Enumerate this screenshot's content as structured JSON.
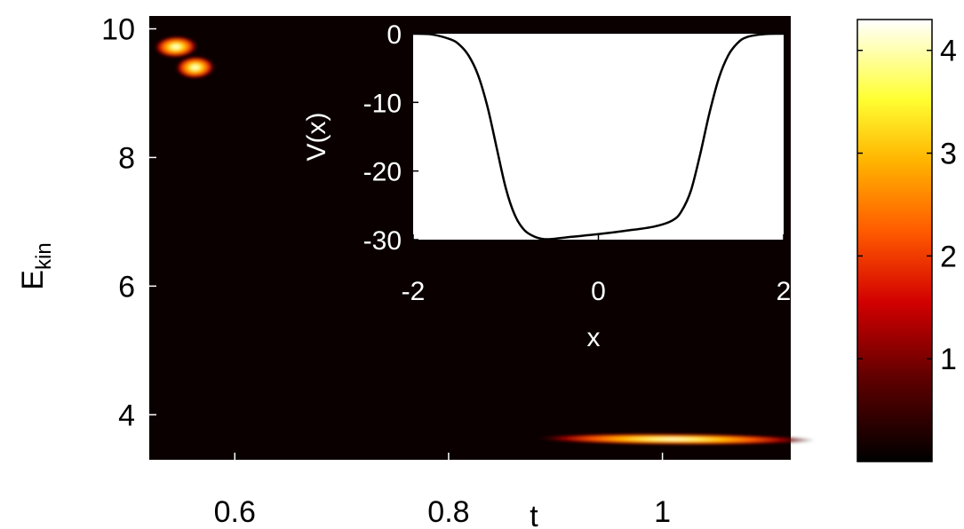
{
  "chart_data": [
    {
      "type": "heatmap",
      "title": "",
      "xlabel": "t",
      "ylabel_main": "E",
      "ylabel_sub": "kin",
      "xlim": [
        0.52,
        1.12
      ],
      "ylim": [
        3.3,
        10.2
      ],
      "xticks": [
        "0.6",
        "0.8",
        "1"
      ],
      "xtick_values": [
        0.6,
        0.8,
        1.0
      ],
      "yticks": [
        "4",
        "6",
        "8",
        "10"
      ],
      "ytick_values": [
        4,
        6,
        8,
        10
      ],
      "colormap": "hot",
      "background_color": "#0a0000",
      "blobs": [
        {
          "t": 0.545,
          "E": 9.72,
          "spread_t": 0.011,
          "spread_E": 0.16,
          "tilt": 0.55,
          "peak": 4.2
        },
        {
          "t": 0.563,
          "E": 9.4,
          "spread_t": 0.01,
          "spread_E": 0.18,
          "tilt": 0.55,
          "peak": 4.2
        },
        {
          "t": 1.01,
          "E": 3.62,
          "spread_t": 0.07,
          "spread_E": 0.055,
          "tilt": -0.12,
          "peak": 4.2
        }
      ],
      "colorbar": {
        "range": [
          0,
          4.3
        ],
        "ticks": [
          "1",
          "2",
          "3",
          "4"
        ],
        "tick_values": [
          1,
          2,
          3,
          4
        ]
      }
    },
    {
      "type": "line",
      "title": "",
      "xlabel": "x",
      "ylabel": "V(x)",
      "xlim": [
        -2,
        2
      ],
      "ylim": [
        -30,
        0
      ],
      "xticks": [
        "-2",
        "0",
        "2"
      ],
      "xtick_values": [
        -2,
        0,
        2
      ],
      "yticks": [
        "0",
        "-10",
        "-20",
        "-30"
      ],
      "ytick_values": [
        0,
        -10,
        -20,
        -30
      ],
      "line_color": "#000000",
      "series": [
        {
          "x": [
            -2.0,
            -1.8,
            -1.6,
            -1.5,
            -1.4,
            -1.3,
            -1.2,
            -1.1,
            -1.0,
            -0.9,
            -0.8,
            -0.7,
            -0.6,
            -0.5,
            -0.3,
            0.0,
            0.3,
            0.6,
            0.8,
            0.9,
            1.0,
            1.1,
            1.2,
            1.3,
            1.4,
            1.5,
            1.6,
            1.8,
            2.0
          ],
          "y": [
            0.0,
            -0.1,
            -0.8,
            -1.6,
            -3.2,
            -6.0,
            -10.5,
            -16.5,
            -22.5,
            -26.5,
            -28.6,
            -29.5,
            -29.9,
            -29.9,
            -29.6,
            -29.2,
            -28.7,
            -28.1,
            -27.2,
            -25.8,
            -22.8,
            -17.5,
            -11.5,
            -6.5,
            -3.2,
            -1.4,
            -0.5,
            -0.05,
            0.0
          ]
        }
      ]
    }
  ]
}
